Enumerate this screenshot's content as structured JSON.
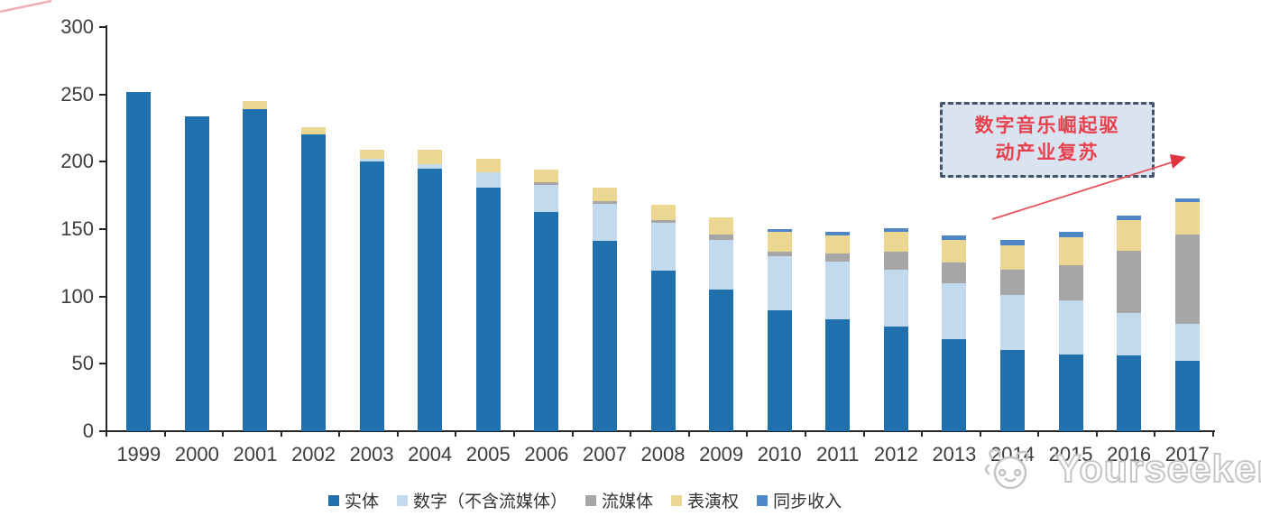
{
  "chart_data": {
    "type": "bar",
    "stacked": true,
    "title": "",
    "xlabel": "",
    "ylabel": "",
    "categories": [
      "1999",
      "2000",
      "2001",
      "2002",
      "2003",
      "2004",
      "2005",
      "2006",
      "2007",
      "2008",
      "2009",
      "2010",
      "2011",
      "2012",
      "2013",
      "2014",
      "2015",
      "2016",
      "2017"
    ],
    "series": [
      {
        "name": "实体",
        "color": "#2070ad",
        "values": [
          252,
          234,
          239,
          220,
          200,
          195,
          181,
          163,
          141,
          119,
          105,
          90,
          83,
          78,
          68,
          60,
          57,
          56,
          52
        ]
      },
      {
        "name": "数字（不含流媒体）",
        "color": "#c3d9ee",
        "values": [
          0,
          0,
          0,
          0,
          2,
          3,
          11,
          20,
          28,
          36,
          37,
          40,
          43,
          42,
          42,
          41,
          40,
          32,
          28
        ]
      },
      {
        "name": "流媒体",
        "color": "#a6a6a6",
        "values": [
          0,
          0,
          0,
          0,
          0,
          0,
          0,
          2,
          2,
          2,
          4,
          3,
          6,
          13,
          15,
          19,
          26,
          46,
          66
        ]
      },
      {
        "name": "表演权",
        "color": "#ebd692",
        "values": [
          0,
          0,
          6,
          6,
          7,
          11,
          10,
          9,
          10,
          11,
          13,
          15,
          13,
          15,
          17,
          18,
          21,
          23,
          24
        ]
      },
      {
        "name": "同步收入",
        "color": "#4e86c6",
        "values": [
          0,
          0,
          0,
          0,
          0,
          0,
          0,
          0,
          0,
          0,
          0,
          2,
          3,
          3,
          3,
          4,
          4,
          3,
          3
        ]
      }
    ],
    "totals": [
      252,
      234,
      245,
      226,
      209,
      209,
      202,
      194,
      181,
      168,
      159,
      150,
      148,
      151,
      145,
      142,
      148,
      160,
      173
    ],
    "y_ticks": [
      "0",
      "50",
      "100",
      "150",
      "200",
      "250",
      "300"
    ],
    "ylim": [
      0,
      300
    ],
    "grid": false,
    "legend_position": "bottom"
  },
  "annotation": {
    "lines": [
      "数字音乐崛起驱",
      "动产业复苏"
    ],
    "text_color": "#e8414e",
    "box_fill": "#dae4f1",
    "box_border": "#44546a",
    "arrow_color": "#e8515c"
  },
  "watermark": {
    "text": "Yourseeker",
    "logo": "cat-logo-icon",
    "color": "#c5c5c5"
  }
}
